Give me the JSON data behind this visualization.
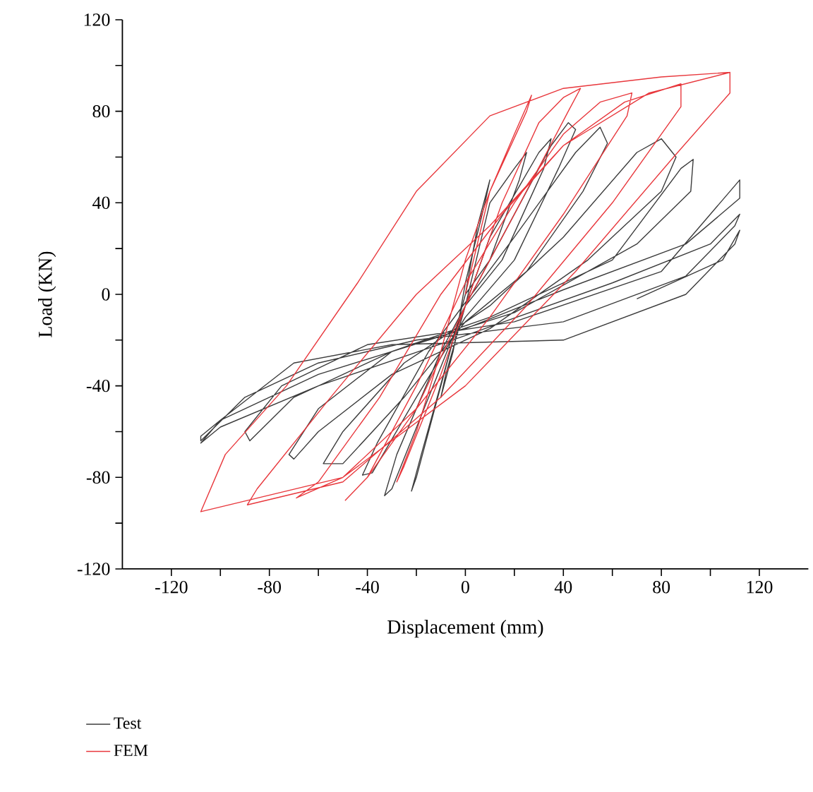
{
  "chart_data": {
    "type": "line",
    "xlabel": "Displacement (mm)",
    "ylabel": "Load (KN)",
    "xlim": [
      -140,
      140
    ],
    "ylim": [
      -120,
      120
    ],
    "xticks": [
      -120,
      {
        "value": -100,
        "label": null
      },
      -80,
      {
        "value": -60,
        "label": null
      },
      -40,
      {
        "value": -20,
        "label": null
      },
      0,
      {
        "value": 20,
        "label": null
      },
      40,
      {
        "value": 60,
        "label": null
      },
      80,
      {
        "value": 100,
        "label": null
      },
      120
    ],
    "yticks": [
      -120,
      {
        "value": -100,
        "label": null
      },
      -80,
      {
        "value": -60,
        "label": null
      },
      -40,
      {
        "value": -20,
        "label": null
      },
      0,
      {
        "value": 20,
        "label": null
      },
      40,
      {
        "value": 60,
        "label": null
      },
      80,
      {
        "value": 100,
        "label": null
      },
      120
    ],
    "grid": false,
    "legend": "bottom",
    "marker": "none",
    "line_style": "solid",
    "series": [
      {
        "name": "Test",
        "color": "#3c3c3c",
        "x": [
          0,
          5,
          10,
          8,
          0,
          -5,
          -10,
          -8,
          0,
          10,
          20,
          25,
          22,
          10,
          0,
          -10,
          -20,
          -22,
          -18,
          -5,
          10,
          30,
          35,
          32,
          15,
          0,
          -15,
          -30,
          -33,
          -28,
          -10,
          15,
          35,
          42,
          45,
          38,
          20,
          0,
          -20,
          -38,
          -42,
          -36,
          -15,
          20,
          45,
          55,
          58,
          48,
          25,
          0,
          -25,
          -50,
          -58,
          -50,
          -25,
          10,
          40,
          70,
          80,
          86,
          80,
          50,
          10,
          -30,
          -60,
          -70,
          -72,
          -60,
          -30,
          10,
          60,
          88,
          93,
          92,
          70,
          20,
          -30,
          -70,
          -88,
          -90,
          -75,
          -40,
          20,
          80,
          108,
          112,
          112,
          90,
          40,
          0,
          -60,
          -100,
          -108,
          -108,
          -90,
          -60,
          -20,
          40,
          90,
          110,
          112,
          100,
          60,
          0,
          -60,
          -100,
          -108,
          -100,
          -70,
          -30,
          40,
          90,
          110,
          112,
          105,
          70
        ],
        "values": [
          0,
          30,
          50,
          40,
          5,
          -25,
          -45,
          -35,
          -5,
          40,
          55,
          62,
          50,
          15,
          0,
          -40,
          -80,
          -86,
          -70,
          -20,
          25,
          62,
          68,
          55,
          15,
          -5,
          -45,
          -85,
          -88,
          -70,
          -25,
          25,
          65,
          75,
          72,
          55,
          15,
          -10,
          -45,
          -78,
          -79,
          -65,
          -25,
          25,
          62,
          73,
          66,
          45,
          10,
          -12,
          -45,
          -74,
          -74,
          -60,
          -30,
          -5,
          25,
          62,
          68,
          60,
          45,
          15,
          -15,
          -35,
          -60,
          -72,
          -70,
          -50,
          -25,
          -10,
          15,
          55,
          59,
          45,
          22,
          -8,
          -25,
          -45,
          -64,
          -60,
          -40,
          -22,
          -12,
          10,
          45,
          50,
          42,
          22,
          2,
          -15,
          -35,
          -55,
          -62,
          -64,
          -45,
          -30,
          -20,
          -12,
          8,
          30,
          35,
          22,
          5,
          -18,
          -40,
          -58,
          -65,
          -55,
          -30,
          -22,
          -20,
          0,
          22,
          28,
          15,
          -2
        ]
      },
      {
        "name": "FEM",
        "color": "#e8373c",
        "x": [
          0,
          10,
          20,
          27,
          25,
          10,
          0,
          -10,
          -20,
          -28,
          -25,
          -10,
          0,
          15,
          30,
          40,
          47,
          42,
          20,
          0,
          -20,
          -40,
          -49,
          -40,
          -20,
          0,
          20,
          40,
          55,
          68,
          66,
          40,
          10,
          -20,
          -50,
          -69,
          -60,
          -35,
          -10,
          15,
          40,
          65,
          88,
          88,
          60,
          25,
          -10,
          -50,
          -89,
          -85,
          -55,
          -20,
          10,
          40,
          75,
          108,
          108,
          85,
          45,
          0,
          -50,
          -108,
          -98,
          -73,
          -44,
          -20,
          10,
          40,
          80,
          108
        ],
        "values": [
          0,
          45,
          70,
          87,
          80,
          45,
          15,
          -25,
          -60,
          -82,
          -75,
          -35,
          -5,
          40,
          75,
          86,
          90,
          80,
          35,
          -5,
          -50,
          -80,
          -90,
          -80,
          -40,
          5,
          40,
          70,
          84,
          88,
          78,
          35,
          -10,
          -50,
          -80,
          -89,
          -82,
          -45,
          0,
          35,
          65,
          84,
          92,
          82,
          40,
          -5,
          -45,
          -82,
          -92,
          -85,
          -45,
          0,
          30,
          65,
          88,
          97,
          88,
          60,
          10,
          -40,
          -80,
          -95,
          -70,
          -40,
          5,
          45,
          78,
          90,
          95,
          97
        ]
      }
    ]
  }
}
